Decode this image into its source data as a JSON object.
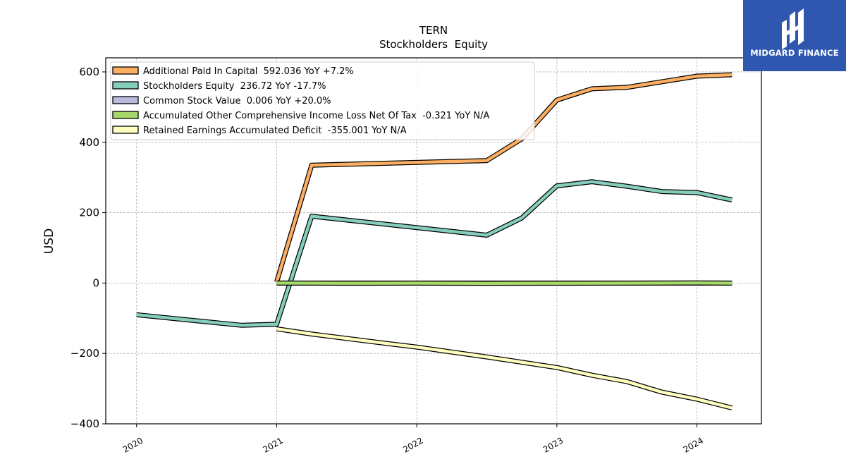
{
  "chart_data": {
    "type": "line",
    "title": "TERN",
    "subtitle": "Stockholders  Equity",
    "ylabel": "USD",
    "xlabel": "",
    "xlim": [
      2019.78,
      2024.46
    ],
    "ylim": [
      -400,
      640
    ],
    "yticks": [
      -400,
      -200,
      0,
      200,
      400,
      600
    ],
    "ytick_labels": [
      "−400",
      "−200",
      "0",
      "200",
      "400",
      "600"
    ],
    "xticks": [
      2020,
      2021,
      2022,
      2023,
      2024
    ],
    "xtick_labels": [
      "2020",
      "2021",
      "2022",
      "2023",
      "2024"
    ],
    "grid": true,
    "legend_position": "top-left",
    "series": [
      {
        "name": "Additional Paid In Capital  592.036 YoY +7.2%",
        "color": "#fdae61",
        "x": [
          2021.0,
          2021.25,
          2022.5,
          2022.75,
          2023.0,
          2023.25,
          2023.5,
          2023.75,
          2024.0,
          2024.25
        ],
        "y": [
          3,
          335,
          348,
          410,
          520,
          552,
          556,
          572,
          588,
          592
        ]
      },
      {
        "name": "Stockholders Equity  236.72 YoY -17.7%",
        "color": "#86cebc",
        "x": [
          2020.0,
          2020.75,
          2021.0,
          2021.25,
          2022.5,
          2022.75,
          2023.0,
          2023.25,
          2023.5,
          2023.75,
          2024.0,
          2024.25
        ],
        "y": [
          -90,
          -120,
          -117,
          190,
          136,
          185,
          276,
          288,
          275,
          260,
          257,
          236
        ]
      },
      {
        "name": "Common Stock Value  0.006 YoY +20.0%",
        "color": "#bbbbdd",
        "x": [
          2021.0,
          2024.25
        ],
        "y": [
          0,
          0
        ]
      },
      {
        "name": "Accumulated Other Comprehensive Income Loss Net Of Tax  -0.321 YoY N/A",
        "color": "#a6d96a",
        "x": [
          2021.0,
          2021.5,
          2022.0,
          2022.5,
          2023.0,
          2023.5,
          2024.0,
          2024.25
        ],
        "y": [
          0,
          -0.5,
          -0.3,
          -0.8,
          -0.4,
          -0.2,
          0.3,
          -0.3
        ]
      },
      {
        "name": "Retained Earnings Accumulated Deficit  -355.001 YoY N/A",
        "color": "#ffffbf",
        "x": [
          2021.0,
          2021.25,
          2021.75,
          2022.0,
          2022.5,
          2022.75,
          2023.0,
          2023.25,
          2023.5,
          2023.75,
          2024.0,
          2024.25
        ],
        "y": [
          -130,
          -145,
          -170,
          -182,
          -210,
          -225,
          -240,
          -262,
          -280,
          -310,
          -330,
          -355
        ]
      }
    ]
  },
  "logo": {
    "text": "MIDGARD FINANCE",
    "bg": "#2f57b0"
  }
}
